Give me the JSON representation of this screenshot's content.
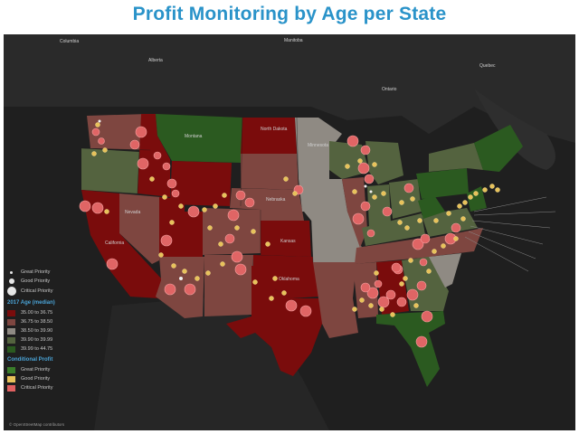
{
  "title": "Profit Monitoring by Age per State",
  "legend": {
    "size_items": [
      {
        "label": "Great Priority",
        "size": 3
      },
      {
        "label": "Good Priority",
        "size": 6
      },
      {
        "label": "Critical Priority",
        "size": 10
      }
    ],
    "age_title": "2017 Age (median)",
    "age_items": [
      {
        "label": "35.00 to 36.75",
        "color": "#7a0c0c"
      },
      {
        "label": "36.75 to 38.50",
        "color": "#7e4640"
      },
      {
        "label": "38.50 to 39.90",
        "color": "#8f8a83"
      },
      {
        "label": "39.90 to 39.99",
        "color": "#54633f"
      },
      {
        "label": "39.99 to 44.75",
        "color": "#2b5a20"
      }
    ],
    "profit_title": "Conditional Profit",
    "profit_items": [
      {
        "label": "Great Priority",
        "color": "#3a7d2a"
      },
      {
        "label": "Good Priority",
        "color": "#e8c25a"
      },
      {
        "label": "Critical Priority",
        "color": "#e06060"
      }
    ]
  },
  "map_labels": [
    {
      "id": "columbia",
      "text": "Columbia"
    },
    {
      "id": "alberta",
      "text": "Alberta"
    },
    {
      "id": "manitoba",
      "text": "Manitoba"
    },
    {
      "id": "ontario",
      "text": "Ontario"
    },
    {
      "id": "quebec",
      "text": "Quebec"
    },
    {
      "id": "montana",
      "text": "Montana"
    },
    {
      "id": "north-dakota",
      "text": "North Dakota"
    },
    {
      "id": "minnesota",
      "text": "Minnesota"
    },
    {
      "id": "nevada",
      "text": "Nevada"
    },
    {
      "id": "nebraska",
      "text": "Nebraska"
    },
    {
      "id": "kansas",
      "text": "Kansas"
    },
    {
      "id": "oklahoma",
      "text": "Oklahoma"
    },
    {
      "id": "california",
      "text": "California"
    }
  ],
  "credit": "© OpenStreetMap contributors"
}
